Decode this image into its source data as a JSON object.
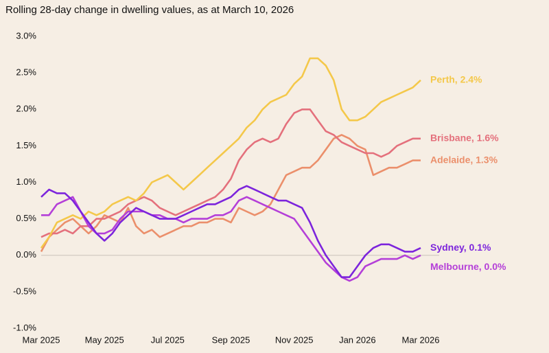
{
  "chart_data": {
    "type": "line",
    "title": "Rolling 28-day change in dwelling values, as at March 10, 2026",
    "categories": [
      "Mar 2025",
      null,
      null,
      null,
      null,
      null,
      null,
      null,
      "May 2025",
      null,
      null,
      null,
      null,
      null,
      null,
      null,
      "Jul 2025",
      null,
      null,
      null,
      null,
      null,
      null,
      null,
      "Sep 2025",
      null,
      null,
      null,
      null,
      null,
      null,
      null,
      "Nov 2025",
      null,
      null,
      null,
      null,
      null,
      null,
      null,
      "Jan 2026",
      null,
      null,
      null,
      null,
      null,
      null,
      null,
      "Mar 2026"
    ],
    "ylim": [
      -1,
      3
    ],
    "yticks": [
      {
        "value": -1,
        "label": "-1.0%"
      },
      {
        "value": -0.5,
        "label": "-0.5%"
      },
      {
        "value": 0,
        "label": "0.0%"
      },
      {
        "value": 0.5,
        "label": "0.5%"
      },
      {
        "value": 1,
        "label": "1.0%"
      },
      {
        "value": 1.5,
        "label": "1.5%"
      },
      {
        "value": 2,
        "label": "2.0%"
      },
      {
        "value": 2.5,
        "label": "2.5%"
      },
      {
        "value": 3,
        "label": "3.0%"
      }
    ],
    "zero_line": true,
    "series": [
      {
        "name": "Adelaide, 1.3%",
        "color": "#eb8f6b",
        "values": [
          0.05,
          0.25,
          0.35,
          0.45,
          0.5,
          0.4,
          0.3,
          0.4,
          0.55,
          0.5,
          0.45,
          0.65,
          0.4,
          0.3,
          0.35,
          0.25,
          0.3,
          0.35,
          0.4,
          0.4,
          0.45,
          0.45,
          0.5,
          0.5,
          0.45,
          0.65,
          0.6,
          0.55,
          0.6,
          0.7,
          0.9,
          1.1,
          1.15,
          1.2,
          1.2,
          1.3,
          1.45,
          1.6,
          1.65,
          1.6,
          1.5,
          1.45,
          1.1,
          1.15,
          1.2,
          1.2,
          1.25,
          1.3,
          1.3
        ]
      },
      {
        "name": "Brisbane, 1.6%",
        "color": "#e4707c",
        "values": [
          0.25,
          0.3,
          0.3,
          0.35,
          0.3,
          0.4,
          0.4,
          0.5,
          0.5,
          0.55,
          0.6,
          0.7,
          0.75,
          0.8,
          0.75,
          0.65,
          0.6,
          0.55,
          0.6,
          0.65,
          0.7,
          0.75,
          0.8,
          0.9,
          1.05,
          1.3,
          1.45,
          1.55,
          1.6,
          1.55,
          1.6,
          1.8,
          1.95,
          2.0,
          2.0,
          1.85,
          1.7,
          1.65,
          1.55,
          1.5,
          1.45,
          1.4,
          1.4,
          1.35,
          1.4,
          1.5,
          1.55,
          1.6,
          1.6
        ]
      },
      {
        "name": "Perth, 2.4%",
        "color": "#f4c84a",
        "values": [
          0.1,
          0.25,
          0.45,
          0.5,
          0.55,
          0.5,
          0.6,
          0.55,
          0.6,
          0.7,
          0.75,
          0.8,
          0.75,
          0.85,
          1.0,
          1.05,
          1.1,
          1.0,
          0.9,
          1.0,
          1.1,
          1.2,
          1.3,
          1.4,
          1.5,
          1.6,
          1.75,
          1.85,
          2.0,
          2.1,
          2.15,
          2.2,
          2.35,
          2.45,
          2.7,
          2.7,
          2.6,
          2.4,
          2.0,
          1.85,
          1.85,
          1.9,
          2.0,
          2.1,
          2.15,
          2.2,
          2.25,
          2.3,
          2.4
        ]
      },
      {
        "name": "Melbourne, 0.0%",
        "color": "#b43fd8",
        "values": [
          0.55,
          0.55,
          0.7,
          0.75,
          0.8,
          0.6,
          0.4,
          0.3,
          0.3,
          0.35,
          0.5,
          0.6,
          0.6,
          0.6,
          0.55,
          0.55,
          0.5,
          0.5,
          0.45,
          0.5,
          0.5,
          0.5,
          0.55,
          0.55,
          0.6,
          0.75,
          0.8,
          0.75,
          0.7,
          0.65,
          0.6,
          0.55,
          0.5,
          0.35,
          0.2,
          0.05,
          -0.1,
          -0.2,
          -0.3,
          -0.35,
          -0.3,
          -0.15,
          -0.1,
          -0.05,
          -0.05,
          -0.05,
          0.0,
          -0.05,
          0.0
        ]
      },
      {
        "name": "Sydney, 0.1%",
        "color": "#7c24dc",
        "values": [
          0.8,
          0.9,
          0.85,
          0.85,
          0.75,
          0.6,
          0.45,
          0.3,
          0.2,
          0.3,
          0.45,
          0.55,
          0.65,
          0.6,
          0.55,
          0.5,
          0.5,
          0.5,
          0.55,
          0.6,
          0.65,
          0.7,
          0.7,
          0.75,
          0.8,
          0.9,
          0.95,
          0.9,
          0.85,
          0.8,
          0.75,
          0.75,
          0.7,
          0.65,
          0.45,
          0.2,
          0.0,
          -0.15,
          -0.3,
          -0.3,
          -0.15,
          0.0,
          0.1,
          0.15,
          0.15,
          0.1,
          0.05,
          0.05,
          0.1
        ]
      }
    ]
  }
}
